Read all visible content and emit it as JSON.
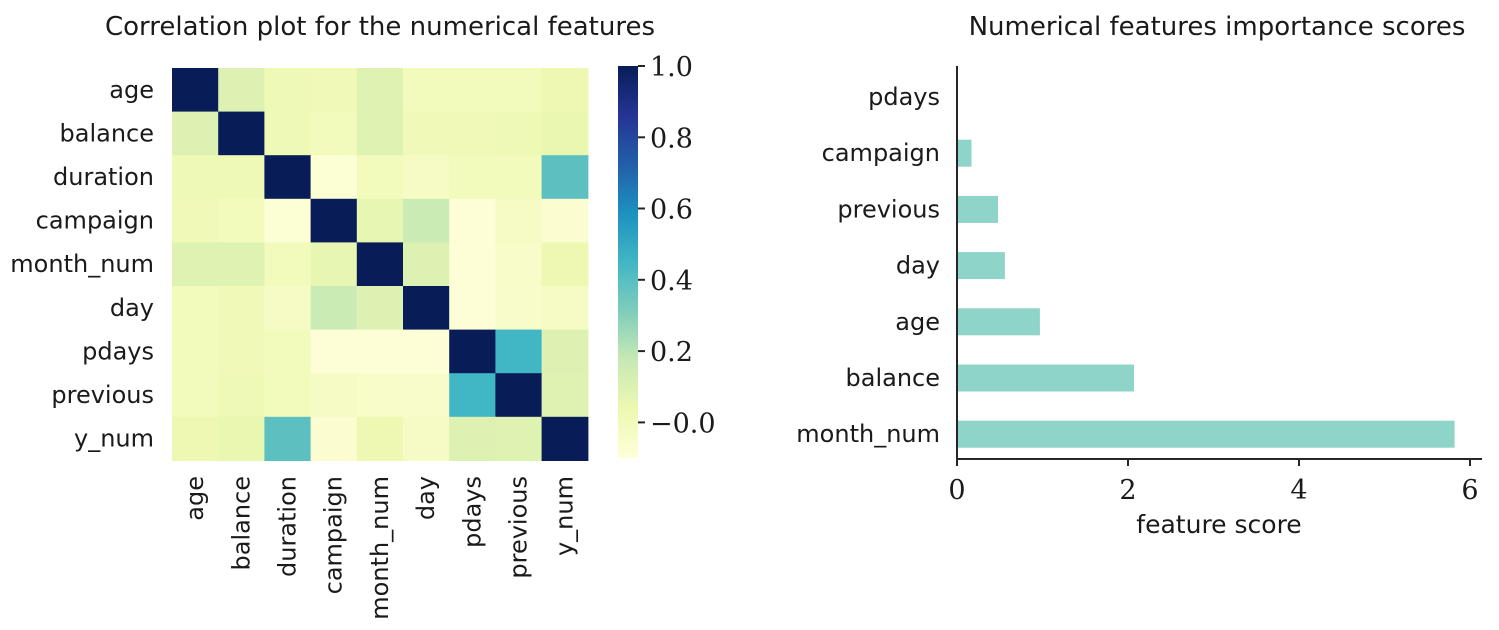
{
  "chart_data": [
    {
      "type": "heatmap",
      "title": "Correlation plot for the numerical features",
      "rows": [
        "age",
        "balance",
        "duration",
        "campaign",
        "month_num",
        "day",
        "pdays",
        "previous",
        "y_num"
      ],
      "cols": [
        "age",
        "balance",
        "duration",
        "campaign",
        "month_num",
        "day",
        "pdays",
        "previous",
        "y_num"
      ],
      "values": [
        [
          1.0,
          0.1,
          0.02,
          0.01,
          0.09,
          0.0,
          0.0,
          0.0,
          0.03
        ],
        [
          0.1,
          1.0,
          0.02,
          0.0,
          0.09,
          0.01,
          0.01,
          0.02,
          0.05
        ],
        [
          0.02,
          0.02,
          1.0,
          -0.08,
          0.0,
          -0.03,
          0.0,
          0.0,
          0.39
        ],
        [
          0.01,
          0.0,
          -0.08,
          1.0,
          0.06,
          0.16,
          -0.09,
          -0.03,
          -0.07
        ],
        [
          0.09,
          0.09,
          0.0,
          0.06,
          1.0,
          0.1,
          -0.09,
          -0.04,
          0.03
        ],
        [
          0.0,
          0.01,
          -0.03,
          0.16,
          0.1,
          1.0,
          -0.09,
          -0.05,
          -0.03
        ],
        [
          0.0,
          0.01,
          0.0,
          -0.09,
          -0.09,
          -0.09,
          1.0,
          0.45,
          0.1
        ],
        [
          0.0,
          0.02,
          0.0,
          -0.03,
          -0.04,
          -0.05,
          0.45,
          1.0,
          0.09
        ],
        [
          0.03,
          0.05,
          0.39,
          -0.07,
          0.03,
          -0.03,
          0.1,
          0.09,
          1.0
        ]
      ],
      "colorbar": {
        "vmin": -0.1,
        "vmax": 1.0,
        "ticks": [
          1.0,
          0.8,
          0.6,
          0.4,
          0.2,
          0.0
        ],
        "tick_labels": [
          "1.0",
          "0.8",
          "0.6",
          "0.4",
          "0.2",
          "−0.0"
        ],
        "colormap": "YlGnBu"
      }
    },
    {
      "type": "bar",
      "orientation": "horizontal",
      "title": "Numerical features importance scores",
      "categories": [
        "pdays",
        "campaign",
        "previous",
        "day",
        "age",
        "balance",
        "month_num"
      ],
      "values": [
        0.0,
        0.17,
        0.48,
        0.56,
        0.97,
        2.07,
        5.82
      ],
      "xlabel": "feature score",
      "ylabel": "",
      "xlim": [
        0,
        6.15
      ],
      "xticks": [
        0,
        2,
        4,
        6
      ],
      "color": "#8fd4c8",
      "grid": false
    }
  ]
}
